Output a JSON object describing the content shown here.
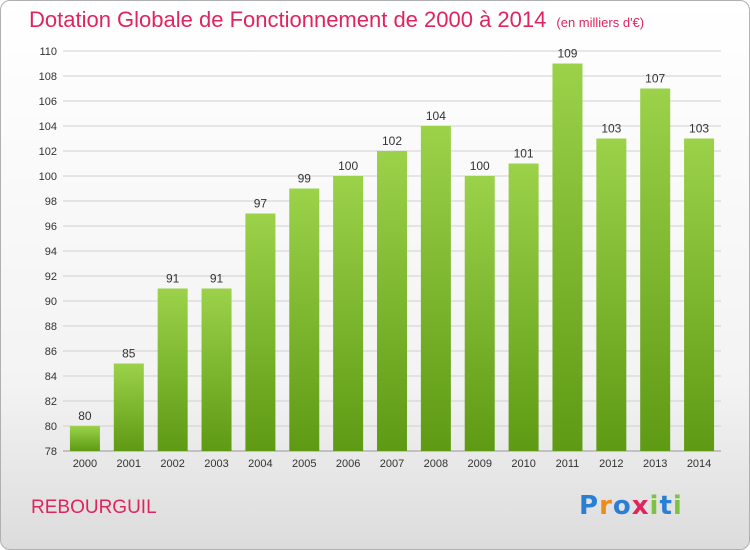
{
  "header": {
    "title": "Dotation Globale de Fonctionnement de 2000 à 2014",
    "subtitle": "(en milliers d'€)"
  },
  "footer": {
    "commune": "REBOURGUIL",
    "brand": "Proxiti",
    "brand_colors": [
      "#2a7fd4",
      "#f08a1c",
      "#2a7fd4",
      "#e0245e",
      "#7cc243",
      "#2a7fd4",
      "#7cc243"
    ]
  },
  "colors": {
    "bar_top": "#9bd24a",
    "bar_bottom": "#5f9a14",
    "title": "#e0245e",
    "grid": "#d0d0d0"
  },
  "chart_data": {
    "type": "bar",
    "title": "Dotation Globale de Fonctionnement de 2000 à 2014",
    "subtitle": "(en milliers d'€)",
    "categories": [
      "2000",
      "2001",
      "2002",
      "2003",
      "2004",
      "2005",
      "2006",
      "2007",
      "2008",
      "2009",
      "2010",
      "2011",
      "2012",
      "2013",
      "2014"
    ],
    "values": [
      80,
      85,
      91,
      91,
      97,
      99,
      100,
      102,
      104,
      100,
      101,
      109,
      103,
      107,
      103
    ],
    "yticks": [
      "78",
      "80",
      "82",
      "84",
      "86",
      "88",
      "90",
      "92",
      "94",
      "96",
      "98",
      "100",
      "102",
      "104",
      "106",
      "108",
      "110"
    ],
    "ylim": [
      78,
      110
    ],
    "grid": true,
    "legend": "none"
  }
}
